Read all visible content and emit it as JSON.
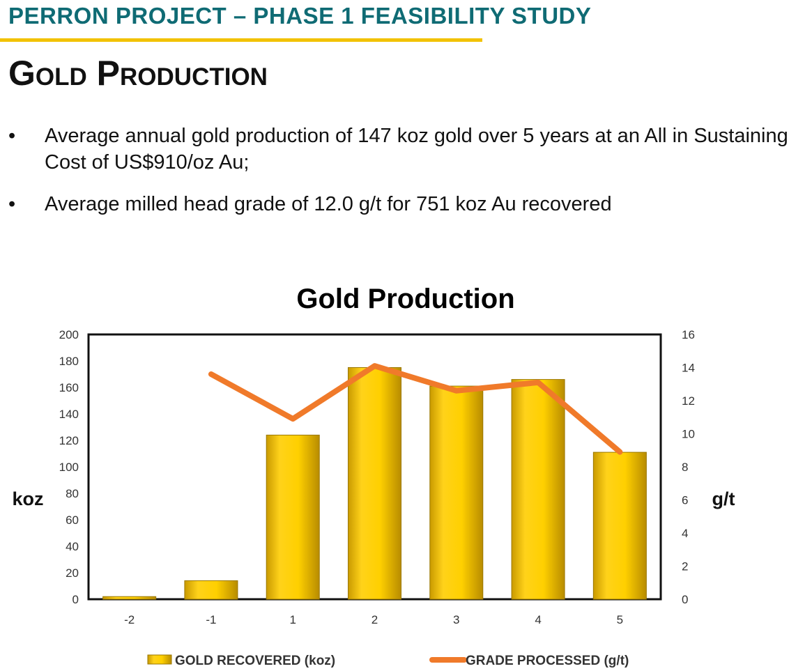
{
  "header": {
    "project_title": "PERRON PROJECT – PHASE 1 FEASIBILITY STUDY",
    "slide_title": "Gold Production"
  },
  "bullets": [
    "Average annual gold production of 147 koz gold over 5 years at an All in Sustaining Cost of US$910/oz Au;",
    "Average milled head grade of 12.0 g/t for 751 koz Au recovered"
  ],
  "colors": {
    "header_teal": "#0f6b74",
    "accent_yellow": "#f2c200",
    "bar_gold": "#f5c400",
    "line_orange": "#f07a2a",
    "chart_title_gray": "#4a4a4a"
  },
  "chart_data": {
    "type": "bar",
    "title": "Gold Production",
    "categories": [
      "-2",
      "-1",
      "1",
      "2",
      "3",
      "4",
      "5"
    ],
    "ylabel": "koz",
    "y2label": "g/t",
    "ylim": [
      0,
      200
    ],
    "yticks": [
      "0",
      "20",
      "40",
      "60",
      "80",
      "100",
      "120",
      "140",
      "160",
      "180",
      "200"
    ],
    "y2lim": [
      0,
      16
    ],
    "y2ticks": [
      "0",
      "2",
      "4",
      "6",
      "8",
      "10",
      "12",
      "14",
      "16"
    ],
    "grid": false,
    "legend_position": "bottom",
    "series": [
      {
        "name": "GOLD RECOVERED (koz)",
        "type": "bar",
        "axis": "left",
        "values": [
          2,
          14,
          124,
          175,
          161,
          166,
          111
        ]
      },
      {
        "name": "GRADE PROCESSED (g/t)",
        "type": "line",
        "axis": "right",
        "values": [
          null,
          13.6,
          10.9,
          14.1,
          12.6,
          13.1,
          8.9
        ]
      }
    ]
  }
}
